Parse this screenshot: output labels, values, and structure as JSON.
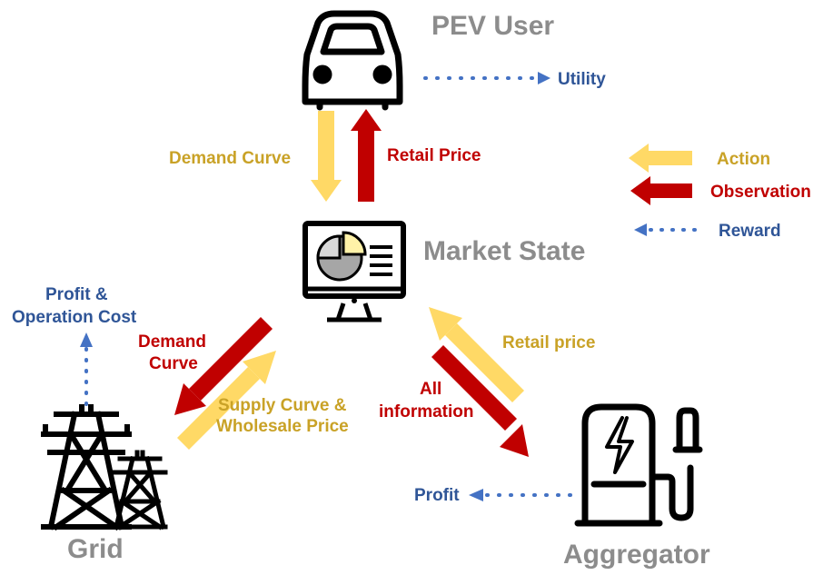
{
  "nodes": {
    "pev_user": "PEV User",
    "market_state": "Market State",
    "grid": "Grid",
    "aggregator": "Aggregator"
  },
  "edges": {
    "demand_curve_top": "Demand Curve",
    "retail_price_top": "Retail Price",
    "utility": "Utility",
    "demand_curve_left_1": "Demand",
    "demand_curve_left_2": "Curve",
    "supply_curve_1": "Supply Curve &",
    "supply_curve_2": "Wholesale Price",
    "profit_op_cost_1": "Profit &",
    "profit_op_cost_2": "Operation Cost",
    "retail_price_right": "Retail price",
    "all_information_1": "All",
    "all_information_2": "information",
    "profit": "Profit"
  },
  "legend": {
    "action": "Action",
    "observation": "Observation",
    "reward": "Reward"
  },
  "colors": {
    "action": "#ffd966",
    "observation": "#c00000",
    "reward": "#4472c4",
    "node_label": "#8c8c8c",
    "gold_text": "#c9a227",
    "red_text": "#c00000",
    "blue_text": "#2f5597"
  },
  "icons": [
    "car-icon",
    "dashboard-monitor-icon",
    "transmission-tower-icon",
    "charging-station-icon"
  ]
}
